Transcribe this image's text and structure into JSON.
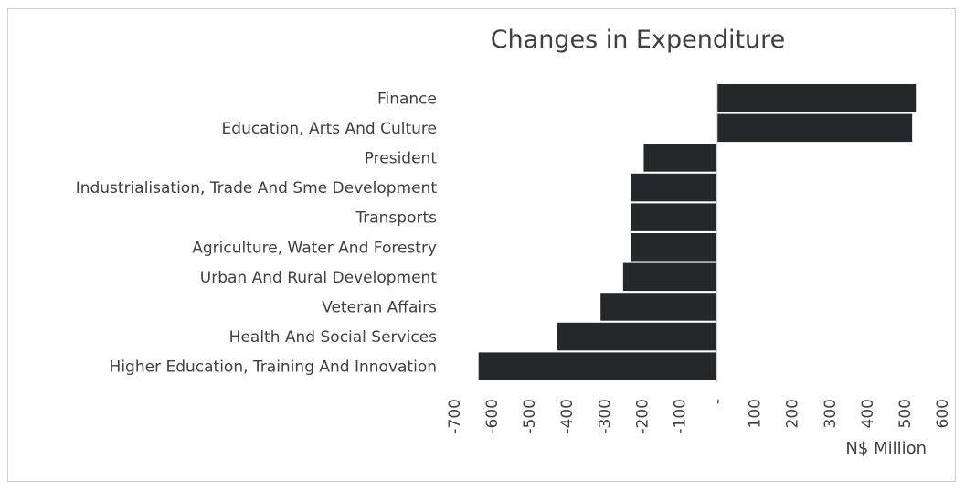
{
  "chart_data": {
    "type": "bar",
    "orientation": "horizontal",
    "title": "Changes in Expenditure",
    "xlabel": "N$ Million",
    "ylabel": "",
    "xlim": [
      -700,
      600
    ],
    "tick_step": 100,
    "tick_labels": [
      "-700",
      "-600",
      "-500",
      "-400",
      "-300",
      "-200",
      "-100",
      "-",
      "100",
      "200",
      "300",
      "400",
      "500",
      "600"
    ],
    "categories": [
      "Finance",
      "Education, Arts And Culture",
      "President",
      "Industrialisation, Trade And Sme Development",
      "Transports",
      "Agriculture, Water And Forestry",
      "Urban And Rural Development",
      "Veteran Affairs",
      "Health And Social Services",
      "Higher Education, Training And Innovation"
    ],
    "values": [
      530,
      520,
      -195,
      -228,
      -230,
      -230,
      -250,
      -310,
      -425,
      -635
    ],
    "bar_color": "#25282b",
    "grid": false,
    "legend": "none"
  }
}
